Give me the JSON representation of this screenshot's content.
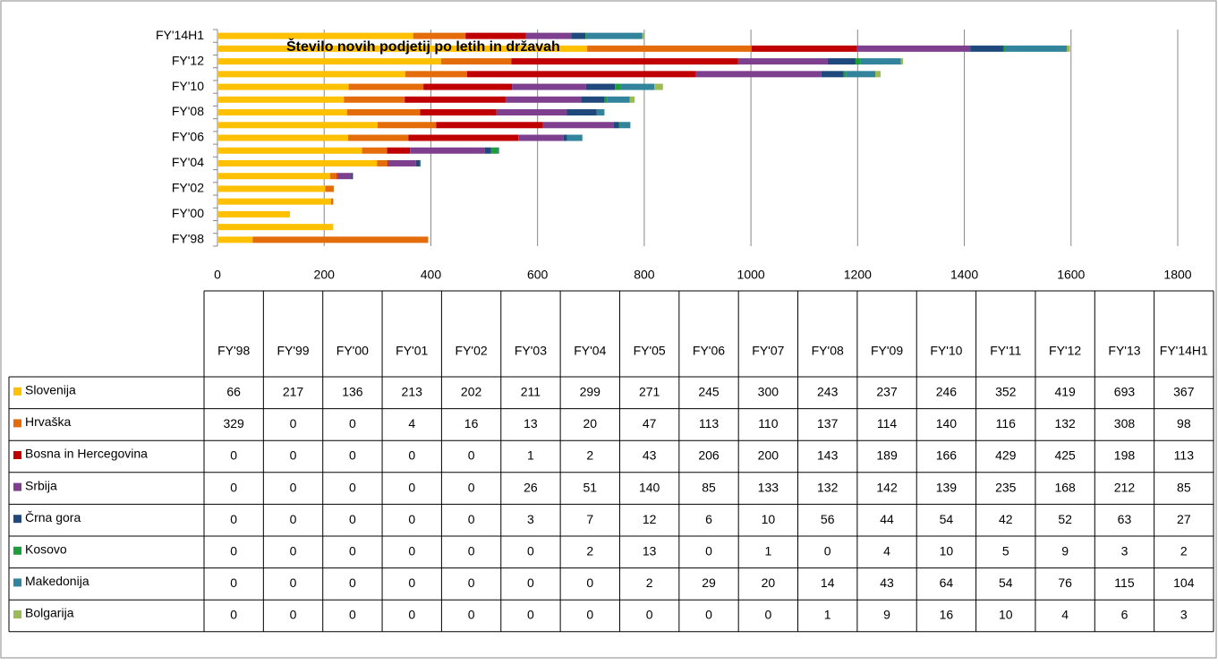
{
  "chart_data": {
    "type": "stacked_bar_horizontal",
    "title": "Število novih podjetij po letih in državah",
    "categories": [
      "FY'98",
      "FY'99",
      "FY'00",
      "FY'01",
      "FY'02",
      "FY'03",
      "FY'04",
      "FY'05",
      "FY'06",
      "FY'07",
      "FY'08",
      "FY'09",
      "FY'10",
      "FY'11",
      "FY'12",
      "FY'13",
      "FY'14H1"
    ],
    "series": [
      {
        "name": "Slovenija",
        "color": "#FFC000",
        "values": [
          66,
          217,
          136,
          213,
          202,
          211,
          299,
          271,
          245,
          300,
          243,
          237,
          246,
          352,
          419,
          693,
          367
        ]
      },
      {
        "name": "Hrvaška",
        "color": "#E46C0A",
        "values": [
          329,
          0,
          0,
          4,
          16,
          13,
          20,
          47,
          113,
          110,
          137,
          114,
          140,
          116,
          132,
          308,
          98
        ]
      },
      {
        "name": "Bosna in Hercegovina",
        "color": "#C00000",
        "values": [
          0,
          0,
          0,
          0,
          0,
          1,
          2,
          43,
          206,
          200,
          143,
          189,
          166,
          429,
          425,
          198,
          113
        ]
      },
      {
        "name": "Srbija",
        "color": "#7F3F8F",
        "values": [
          0,
          0,
          0,
          0,
          0,
          26,
          51,
          140,
          85,
          133,
          132,
          142,
          139,
          235,
          168,
          212,
          85
        ]
      },
      {
        "name": "Črna gora",
        "color": "#1F497D",
        "values": [
          0,
          0,
          0,
          0,
          0,
          3,
          7,
          12,
          6,
          10,
          56,
          44,
          54,
          42,
          52,
          63,
          27
        ]
      },
      {
        "name": "Kosovo",
        "color": "#1E9E3A",
        "values": [
          0,
          0,
          0,
          0,
          0,
          0,
          2,
          13,
          0,
          1,
          0,
          4,
          10,
          5,
          9,
          3,
          2
        ]
      },
      {
        "name": "Makedonija",
        "color": "#31849B",
        "values": [
          0,
          0,
          0,
          0,
          0,
          0,
          0,
          2,
          29,
          20,
          14,
          43,
          64,
          54,
          76,
          115,
          104
        ]
      },
      {
        "name": "Bolgarija",
        "color": "#9BBB59",
        "values": [
          0,
          0,
          0,
          0,
          0,
          0,
          0,
          0,
          0,
          0,
          1,
          9,
          16,
          10,
          4,
          6,
          3
        ]
      }
    ],
    "xlim": [
      0,
      1800
    ],
    "xticks": [
      0,
      200,
      400,
      600,
      800,
      1000,
      1200,
      1400,
      1600,
      1800
    ],
    "grid": true
  }
}
